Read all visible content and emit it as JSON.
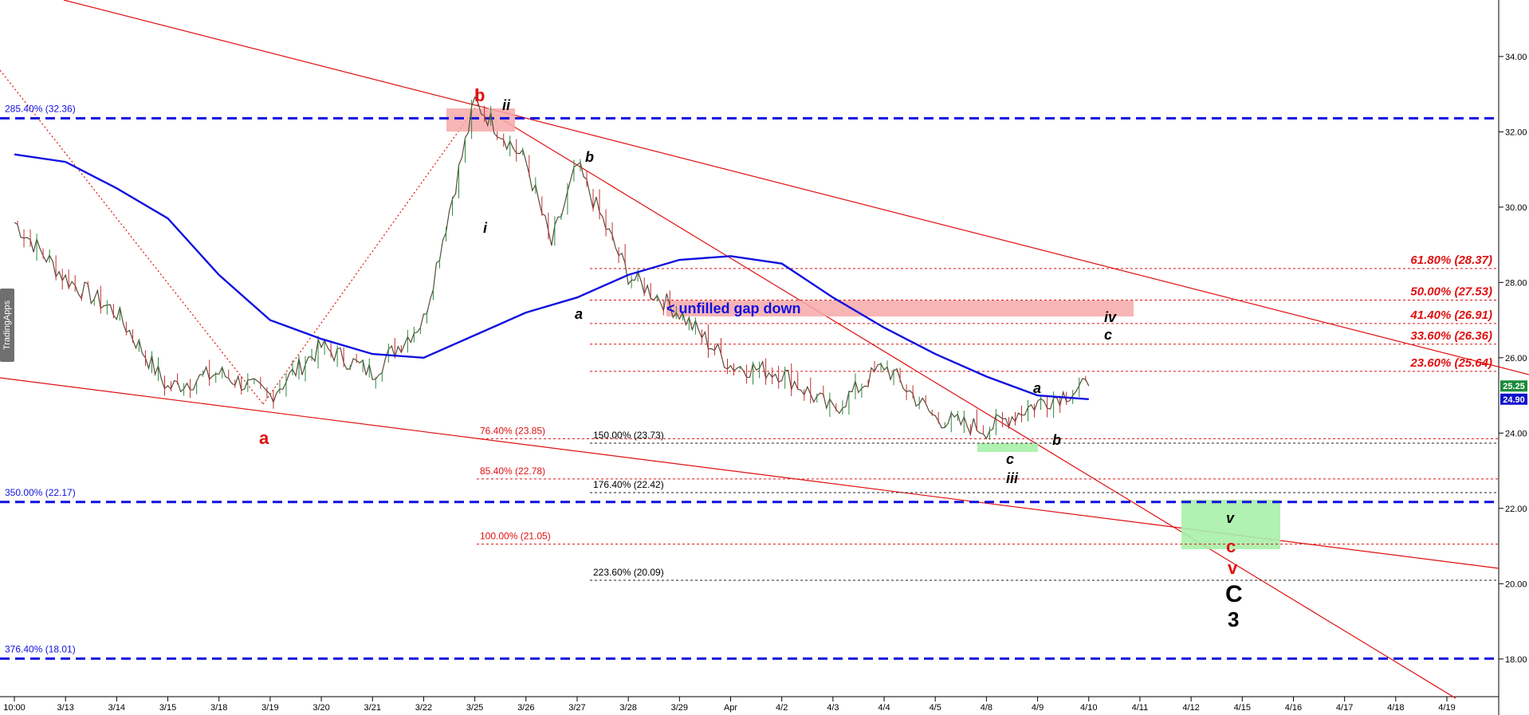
{
  "watermark": "TradingApps",
  "chart_data": {
    "type": "candlestick",
    "title": "",
    "xlabel": "",
    "ylabel": "",
    "ylim": [
      17.0,
      35.5
    ],
    "y_ticks": [
      "18.00",
      "20.00",
      "22.00",
      "24.00",
      "26.00",
      "28.00",
      "30.00",
      "32.00",
      "34.00"
    ],
    "x_ticks": [
      "10:00",
      "3/13",
      "3/14",
      "3/15",
      "3/18",
      "3/19",
      "3/20",
      "3/21",
      "3/22",
      "3/25",
      "3/26",
      "3/27",
      "3/28",
      "3/29",
      "Apr",
      "4/2",
      "4/3",
      "4/4",
      "4/5",
      "4/8",
      "4/9",
      "4/10",
      "4/11",
      "4/12",
      "4/15",
      "4/16",
      "4/17",
      "4/18",
      "4/19"
    ],
    "price_marker": {
      "label": "25.25",
      "value": 25.25,
      "color": "#1a8a3a"
    },
    "ma_marker": {
      "label": "24.90",
      "value": 24.9,
      "color": "#1010cc"
    },
    "price_path": [
      [
        "10:00",
        29.6
      ],
      [
        "3/13",
        28.1
      ],
      [
        "3/14",
        27.2
      ],
      [
        "3/15",
        25.2
      ],
      [
        "3/18",
        25.6
      ],
      [
        "3/19",
        25.0
      ],
      [
        "3/20",
        26.3
      ],
      [
        "3/21",
        25.6
      ],
      [
        "3/22",
        27.0
      ],
      [
        "3/25",
        32.8
      ],
      [
        "3/26",
        31.2
      ],
      [
        "3/26",
        29.0
      ],
      [
        "3/27",
        31.1
      ],
      [
        "3/28",
        28.2
      ],
      [
        "3/29",
        27.2
      ],
      [
        "Apr",
        25.8
      ],
      [
        "4/2",
        25.6
      ],
      [
        "4/3",
        24.6
      ],
      [
        "4/4",
        25.8
      ],
      [
        "4/5",
        24.4
      ],
      [
        "4/8",
        24.1
      ],
      [
        "4/9",
        24.8
      ],
      [
        "4/10",
        25.25
      ]
    ],
    "moving_average": [
      [
        "10:00",
        31.4
      ],
      [
        "3/13",
        31.2
      ],
      [
        "3/14",
        30.5
      ],
      [
        "3/15",
        29.7
      ],
      [
        "3/18",
        28.2
      ],
      [
        "3/19",
        27.0
      ],
      [
        "3/20",
        26.5
      ],
      [
        "3/21",
        26.1
      ],
      [
        "3/22",
        26.0
      ],
      [
        "3/25",
        26.6
      ],
      [
        "3/26",
        27.2
      ],
      [
        "3/27",
        27.6
      ],
      [
        "3/28",
        28.2
      ],
      [
        "3/29",
        28.6
      ],
      [
        "Apr",
        28.7
      ],
      [
        "4/2",
        28.5
      ],
      [
        "4/3",
        27.6
      ],
      [
        "4/4",
        26.8
      ],
      [
        "4/5",
        26.1
      ],
      [
        "4/8",
        25.5
      ],
      [
        "4/9",
        25.0
      ],
      [
        "4/10",
        24.9
      ]
    ],
    "blue_levels": [
      {
        "label": "285.40% (32.36)",
        "value": 32.36
      },
      {
        "label": "350.00% (22.17)",
        "value": 22.17
      },
      {
        "label": "376.40% (18.01)",
        "value": 18.01
      }
    ],
    "retracement_levels": [
      {
        "label": "61.80% (28.37)",
        "value": 28.37
      },
      {
        "label": "50.00% (27.53)",
        "value": 27.53
      },
      {
        "label": "41.40% (26.91)",
        "value": 26.91
      },
      {
        "label": "33.60% (26.36)",
        "value": 26.36
      },
      {
        "label": "23.60% (25.64)",
        "value": 25.64
      }
    ],
    "red_extension_levels": [
      {
        "label": "76.40% (23.85)",
        "value": 23.85
      },
      {
        "label": "85.40% (22.78)",
        "value": 22.78
      },
      {
        "label": "100.00% (21.05)",
        "value": 21.05
      }
    ],
    "black_extension_levels": [
      {
        "label": "150.00% (23.73)",
        "value": 23.73
      },
      {
        "label": "176.40% (22.42)",
        "value": 22.42
      },
      {
        "label": "223.60% (20.09)",
        "value": 20.09
      }
    ],
    "annotations": {
      "gap": "< unfilled gap down",
      "wave_b_major": "b",
      "wave_a_major": "a",
      "wave_ii": "ii",
      "wave_i": "i",
      "wave_b_minor": "b",
      "wave_a_minor": "a",
      "wave_iv": "iv",
      "wave_c_minor": "c",
      "wave_a_small": "a",
      "wave_b_small": "b",
      "wave_c_small": "c",
      "wave_iii": "iii",
      "wave_v_box": "v",
      "wave_c_red": "c",
      "wave_v_red": "v",
      "wave_C": "C",
      "wave_3": "3"
    }
  }
}
